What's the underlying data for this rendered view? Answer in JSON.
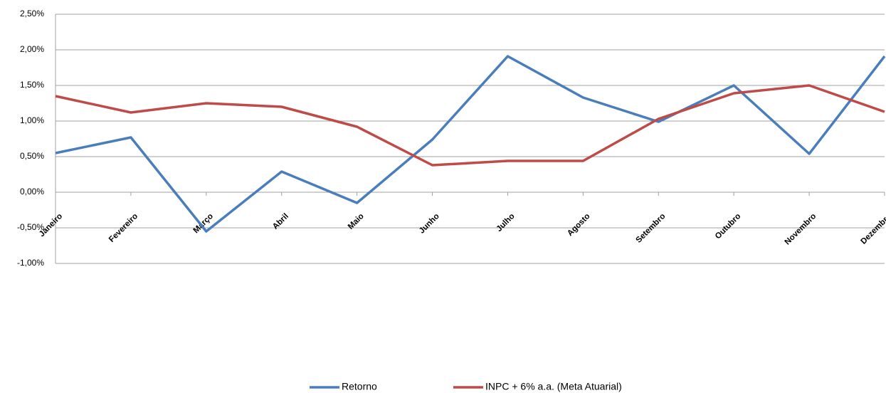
{
  "chart_data": {
    "type": "line",
    "categories": [
      "Janeiro",
      "Fevereiro",
      "Março",
      "Abril",
      "Maio",
      "Junho",
      "Julho",
      "Agosto",
      "Setembro",
      "Outubro",
      "Novembro",
      "Dezembro"
    ],
    "series": [
      {
        "name": "Retorno",
        "color": "#4a7ebb",
        "values": [
          0.55,
          0.77,
          -0.55,
          0.29,
          -0.15,
          0.74,
          1.91,
          1.33,
          0.99,
          1.5,
          0.54,
          1.91
        ]
      },
      {
        "name": "INPC + 6% a.a. (Meta Atuarial)",
        "color": "#be4b48",
        "values": [
          1.35,
          1.12,
          1.25,
          1.2,
          0.92,
          0.38,
          0.44,
          0.44,
          1.03,
          1.39,
          1.5,
          1.13
        ]
      }
    ],
    "ylim": [
      -1,
      2.5
    ],
    "yticks": [
      {
        "value": -1,
        "label": "-1,00%"
      },
      {
        "value": -0.5,
        "label": "-0,50%"
      },
      {
        "value": 0,
        "label": "0,00%"
      },
      {
        "value": 0.5,
        "label": "0,50%"
      },
      {
        "value": 1,
        "label": "1,00%"
      },
      {
        "value": 1.5,
        "label": "1,50%"
      },
      {
        "value": 2,
        "label": "2,00%"
      },
      {
        "value": 2.5,
        "label": "2,50%"
      }
    ],
    "grid": true,
    "legend": "bottom"
  }
}
